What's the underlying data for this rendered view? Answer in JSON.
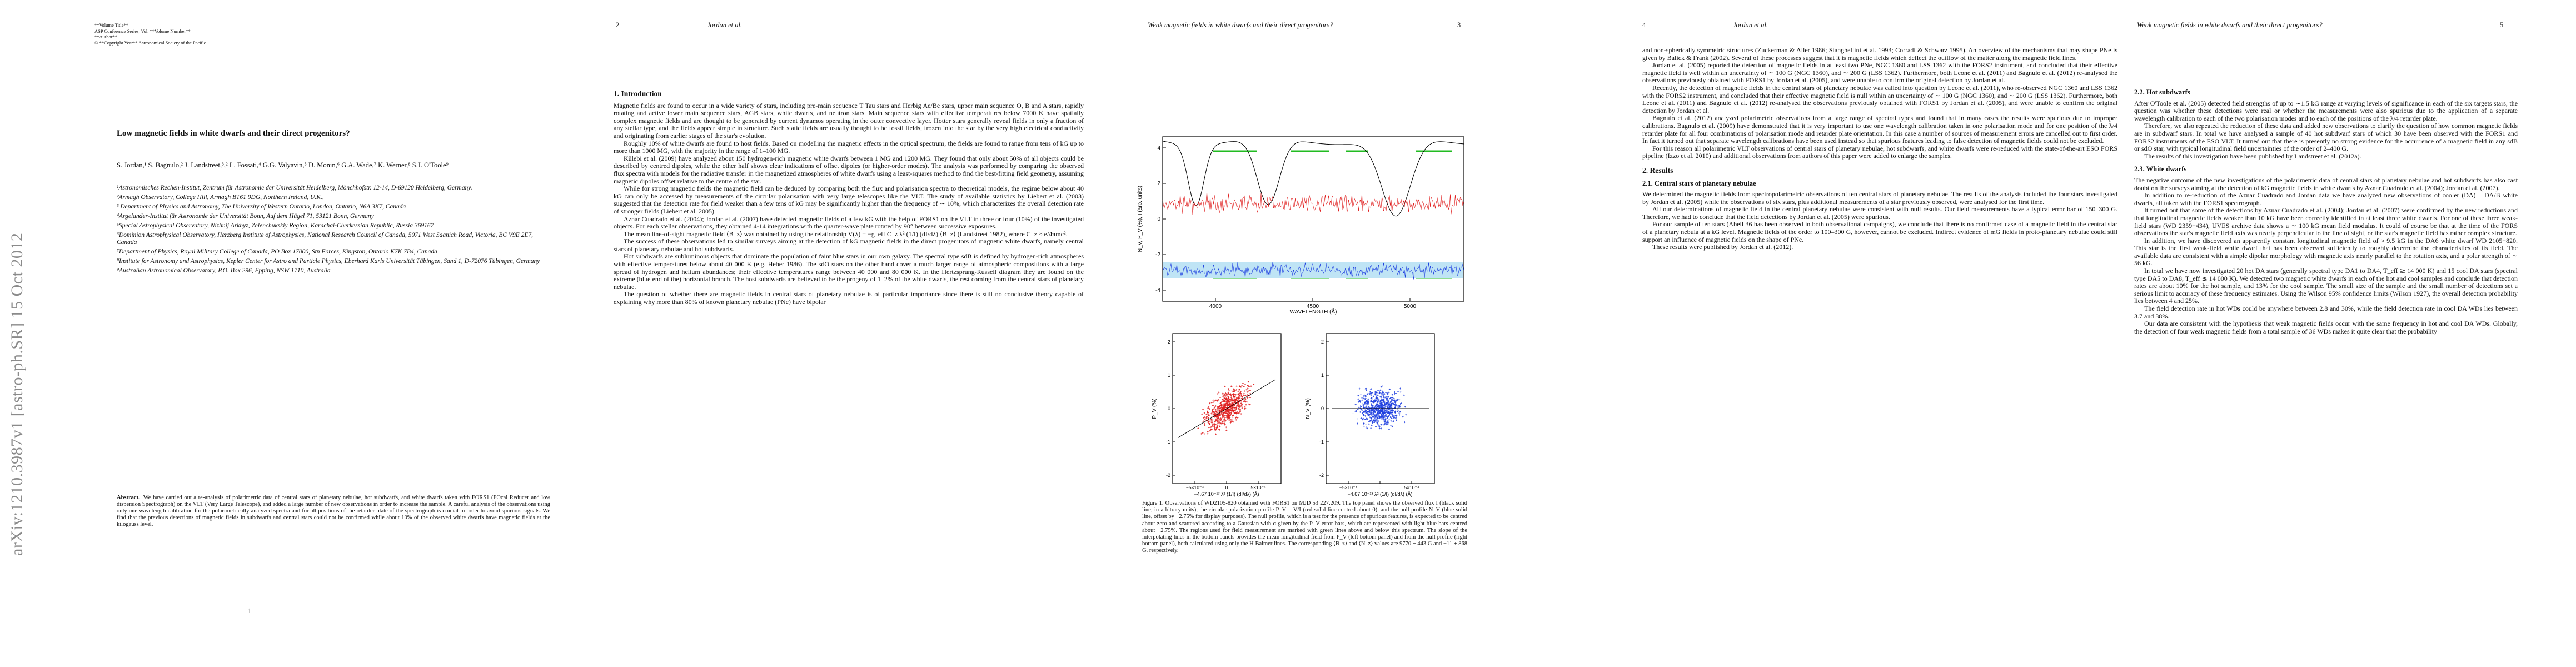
{
  "arxiv_stamp": "arXiv:1210.3987v1  [astro-ph.SR]  15 Oct 2012",
  "page1": {
    "volume_lines": [
      "**Volume Title**",
      "ASP Conference Series, Vol. **Volume Number**",
      "**Author**",
      "© **Copyright Year** Astronomical Society of the Pacific"
    ],
    "title": "Low magnetic fields in white dwarfs and their direct progenitors?",
    "authors": "S. Jordan,¹ S. Bagnulo,² J. Landstreet,³,² L. Fossati,⁴ G.G. Valyavin,⁵ D. Monin,⁶ G.A. Wade,⁷ K. Werner,⁸ S.J. O'Toole⁹",
    "affiliations": [
      "¹Astronomisches Rechen-Institut, Zentrum für Astronomie der Universität Heidelberg, Mönchhofstr. 12-14, D-69120 Heidelberg, Germany.",
      "²Armagh Observatory, College Hill, Armagh BT61 9DG, Northern Ireland, U.K.,",
      "³ Department of Physics and Astronomy, The University of Western Ontario, London, Ontario, N6A 3K7, Canada",
      "⁴Argelander-Institut für Astronomie der Universität Bonn, Auf dem Hügel 71, 53121 Bonn, Germany",
      "⁵Special Astrophysical Observatory, Nizhnij Arkhyz, Zelenchukskiy Region, Karachai-Cherkessian Republic, Russia 369167",
      "⁶Dominion Astrophysical Observatory, Herzberg Institute of Astrophysics, National Research Council of Canada, 5071 West Saanich Road, Victoria, BC V9E 2E7, Canada",
      "⁷Department of Physics, Royal Military College of Canada, PO Box 17000, Stn Forces, Kingston, Ontario K7K 7B4, Canada",
      "⁸Institute for Astronomy and Astrophysics, Kepler Center for Astro and Particle Physics, Eberhard Karls Universität Tübingen, Sand 1, D-72076 Tübingen, Germany",
      "⁹Australian Astronomical Observatory, P.O. Box 296, Epping, NSW 1710, Australia"
    ],
    "abstract_label": "Abstract.",
    "abstract": "We have carried out a re-analysis of polarimetric data of central stars of planetary nebulae, hot subdwarfs, and white dwarfs taken with FORS1 (FOcal Reducer and low dispersion Spectrograph) on the VLT (Very Large Telescope), and added a large number of new observations in order to increase the sample. A careful analysis of the observations using only one wavelength calibration for the polarimetrically analyzed spectra and for all positions of the retarder plate of the spectrograph is crucial in order to avoid spurious signals. We find that the previous detections of magnetic fields in subdwarfs and central stars could not be confirmed while about 10% of the observed white dwarfs have magnetic fields at the kilogauss level.",
    "page_number": "1"
  },
  "page2": {
    "page_number": "2",
    "running_head": "Jordan et al.",
    "blocks": [
      {
        "heading": "1.   Introduction"
      },
      {
        "text": "Magnetic fields are found to occur in a wide variety of stars, including pre-main sequence T Tau stars and Herbig Ae/Be stars, upper main sequence O, B and A stars, rapidly rotating and active lower main sequence stars, AGB stars, white dwarfs, and neutron stars. Main sequence stars with effective temperatures below 7000 K have spatially complex magnetic fields and are thought to be generated by current dynamos operating in the outer convective layer. Hotter stars generally reveal fields in only a fraction of any stellar type, and the fields appear simple in structure. Such static fields are usually thought to be fossil fields, frozen into the star by the very high electrical conductivity and originating from earlier stages of the star's evolution."
      },
      {
        "text": "Roughly 10% of white dwarfs are found to host fields. Based on modelling the magnetic effects in the optical spectrum, the fields are found to range from tens of kG up to more than 1000 MG, with the majority in the range of 1–100 MG."
      },
      {
        "text": "Külebi et al. (2009) have analyzed about 150 hydrogen-rich magnetic white dwarfs between 1 MG and 1200 MG. They found that only about 50% of all objects could be described by centred dipoles, while the other half shows clear indications of offset dipoles (or higher-order modes). The analysis was performed by comparing the observed flux spectra with models for the radiative transfer in the magnetized atmospheres of white dwarfs using a least-squares method to find the best-fitting field geometry, assuming magnetic dipoles offset relative to the centre of the star."
      },
      {
        "text": "While for strong magnetic fields the magnetic field can be deduced by comparing both the flux and polarisation spectra to theoretical models, the regime below about 40 kG can only be accessed by measurements of the circular polarisation with very large telescopes like the VLT. The study of available statistics by Liebert et al. (2003) suggested that the detection rate for field weaker than a few tens of kG may be significantly higher than the frequency of ∼ 10%, which characterizes the overall detection rate of stronger fields (Liebert et al. 2005)."
      },
      {
        "text": "Aznar Cuadrado et al. (2004); Jordan et al. (2007) have detected magnetic fields of a few kG with the help of FORS1 on the VLT in three or four (10%) of the investigated objects. For each stellar observations, they obtained 4-14 integrations with the quarter-wave plate rotated by 90° between successive exposures."
      },
      {
        "text": "The mean line-of-sight magnetic field ⟨B_z⟩ was obtained by using the relationship V(λ) = −g_eff C_z λ² (1/I) (dI/dλ) ⟨B_z⟩ (Landstreet 1982), where C_z ≈ e/4πmc²."
      },
      {
        "text": "The success of these observations led to similar surveys aiming at the detection of kG magnetic fields in the direct progenitors of magnetic white dwarfs, namely central stars of planetary nebulae and hot subdwarfs."
      },
      {
        "text": "Hot subdwarfs are subluminous objects that dominate the population of faint blue stars in our own galaxy. The spectral type sdB is defined by hydrogen-rich atmospheres with effective temperatures below about 40 000 K (e.g. Heber 1986). The sdO stars on the other hand cover a much larger range of atmospheric compositions with a large spread of hydrogen and helium abundances; their effective temperatures range between 40 000 and 80 000 K. In the Hertzsprung-Russell diagram they are found on the extreme (blue end of the) horizontal branch. The host subdwarfs are believed to be the progeny of 1–2% of the white dwarfs, the rest coming from the central stars of planetary nebulae."
      },
      {
        "text": "The question of whether there are magnetic fields in central stars of planetary nebulae is of particular importance since there is still no conclusive theory capable of explaining why more than 80% of known planetary nebulae (PNe) have bipolar"
      }
    ]
  },
  "page3": {
    "running_head": "Weak magnetic fields in white dwarfs and their direct progenitors?",
    "page_number": "3",
    "figure": {
      "top_ylabel": "N_V, P_V (%), I (arb. units)",
      "top_yticks": [
        "4",
        "2",
        "0",
        "-2",
        "-4"
      ],
      "top_xticks": [
        "4000",
        "4500",
        "5000"
      ],
      "top_xlabel": "WAVELENGTH (Å)",
      "left_ylabel": "P_V (%)",
      "right_ylabel": "N_V (%)",
      "bottom_yticks": [
        "2",
        "1",
        "0",
        "-1",
        "-2"
      ],
      "bottom_xticks": [
        "−5×10⁻⁴",
        "0",
        "5×10⁻⁴"
      ],
      "bottom_xlabel": "−4.67 10⁻¹³ λ² (1/I) (dI/dλ) (Å)",
      "caption": "Figure 1.   Observations of WD2105-820 obtained with FORS1 on MJD 53 227.209. The top panel shows the observed flux I (black solid line, in arbitrary units), the circular polarization profile P_V = V/I (red solid line centred about 0), and the null profile N_V (blue solid line, offset by −2.75% for display purposes). The null profile, which is a test for the presence of spurious features, is expected to be centred about zero and scattered according to a Gaussian with σ given by the P_V error bars, which are represented with light blue bars centred about −2.75%. The regions used for field measurement are marked with green lines above and below this spectrum. The slope of the interpolating lines in the bottom panels provides the mean longitudinal field from P_V (left bottom panel) and from the null profile (right bottom panel), both calculated using only the H Balmer lines. The corresponding ⟨B_z⟩ and ⟨N_z⟩ values are 9770 ± 443 G and −11 ± 868 G, respectively."
    }
  },
  "page4": {
    "page_number": "4",
    "running_head": "Jordan et al.",
    "blocks": [
      {
        "text": "and non-spherically symmetric structures (Zuckerman & Aller 1986; Stanghellini et al. 1993; Corradi & Schwarz 1995). An overview of the mechanisms that may shape PNe is given by Balick & Frank (2002). Several of these processes suggest that it is magnetic fields which deflect the outflow of the matter along the magnetic field lines."
      },
      {
        "text": "Jordan et al. (2005) reported the detection of magnetic fields in at least two PNe, NGC 1360 and LSS 1362 with the FORS2 instrument, and concluded that their effective magnetic field is well within an uncertainty of ∼ 100 G (NGC 1360), and ∼ 200 G (LSS 1362). Furthermore, both Leone et al. (2011) and Bagnulo et al. (2012) re-analysed the observations previously obtained with FORS1 by Jordan et al. (2005), and were unable to confirm the original detection by Jordan et al."
      },
      {
        "text": "Recently, the detection of magnetic fields in the central stars of planetary nebulae was called into question by Leone et al. (2011), who re-observed NGC 1360 and LSS 1362 with the FORS2 instrument, and concluded that their effective magnetic field is null within an uncertainty of ∼ 100 G (NGC 1360), and ∼ 200 G (LSS 1362). Furthermore, both Leone et al. (2011) and Bagnulo et al. (2012) re-analysed the observations previously obtained with FORS1 by Jordan et al. (2005), and were unable to confirm the original detection by Jordan et al."
      },
      {
        "text": "Bagnulo et al. (2012) analyzed polarimetric observations from a large range of spectral types and found that in many cases the results were spurious due to improper calibrations. Bagnulo et al. (2009) have demonstrated that it is very important to use one wavelength calibration taken in one polarisation mode and for one position of the λ/4 retarder plate for all four combinations of polarisation mode and retarder plate orientation. In this case a number of sources of measurement errors are cancelled out to first order. In fact it turned out that separate wavelength calibrations have been used instead so that spurious features leading to false detection of magnetic fields could not be excluded."
      },
      {
        "text": "For this reason all polarimetric VLT observations of central stars of planetary nebulae, hot subdwarfs, and white dwarfs were re-reduced with the state-of-the-art ESO FORS pipeline (Izzo et al. 2010) and additional observations from authors of this paper were added to enlarge the samples."
      },
      {
        "heading": "2.   Results"
      },
      {
        "subheading": "2.1.   Central stars of planetary nebulae"
      },
      {
        "text": "We determined the magnetic fields from spectropolarimetric observations of ten central stars of planetary nebulae. The results of the analysis included the four stars investigated by Jordan et al. (2005) while the observations of six stars, plus additional measurements of a star previously observed, were analysed for the first time."
      },
      {
        "text": "All our determinations of magnetic field in the central planetary nebulae were consistent with null results. Our field measurements have a typical error bar of 150–300 G. Therefore, we had to conclude that the field detections by Jordan et al. (2005) were spurious."
      },
      {
        "text": "For our sample of ten stars (Abell 36 has been observed in both observational campaigns), we conclude that there is no confirmed case of a magnetic field in the central star of a planetary nebula at a kG level. Magnetic fields of the order to 100–300 G, however, cannot be excluded. Indirect evidence of mG fields in proto-planetary nebulae could still support an influence of magnetic fields on the shape of PNe."
      },
      {
        "text": "These results were published by Jordan et al. (2012)."
      }
    ]
  },
  "page5": {
    "running_head": "Weak magnetic fields in white dwarfs and their direct progenitors?",
    "page_number": "5",
    "blocks": [
      {
        "subheading": "2.2.   Hot subdwarfs"
      },
      {
        "text": "After O'Toole et al. (2005) detected field strengths of up to ∼1.5 kG range at varying levels of significance in each of the six targets stars, the question was whether these detections were real or whether the measurements were also spurious due to the application of a separate wavelength calibration to each of the two polarisation modes and to each of the positions of the λ/4 retarder plate."
      },
      {
        "text": "Therefore, we also repeated the reduction of these data and added new observations to clarify the question of how common magnetic fields are in subdwarf stars. In total we have analysed a sample of 40 hot subdwarf stars of which 30 have been observed with the FORS1 and FORS2 instruments of the ESO VLT. It turned out that there is presently no strong evidence for the occurrence of a magnetic field in any sdB or sdO star, with typical longitudinal field uncertainties of the order of 2–400 G."
      },
      {
        "text": "The results of this investigation have been published by Landstreet et al. (2012a)."
      },
      {
        "subheading": "2.3.   White dwarfs"
      },
      {
        "text": "The negative outcome of the new investigations of the polarimetric data of central stars of planetary nebulae and hot subdwarfs has also cast doubt on the surveys aiming at the detection of kG magnetic fields in white dwarfs by Aznar Cuadrado et al. (2004); Jordan et al. (2007)."
      },
      {
        "text": "In addition to re-reduction of the Aznar Cuadrado and Jordan data we have analyzed new observations of cooler (DA) – DA/B white dwarfs, all taken with the FORS1 spectrograph."
      },
      {
        "text": "It turned out that some of the detections by Aznar Cuadrado et al. (2004); Jordan et al. (2007) were confirmed by the new reductions and that longitudinal magnetic fields weaker than 10 kG have been correctly identified in at least three white dwarfs. For one of these three weak-field stars (WD 2359−434), UVES archive data shows a ∼ 100 kG mean field modulus. It could of course be that at the time of the FORS observations the star's magnetic field axis was nearly perpendicular to the line of sight, or the star's magnetic field has rather complex structure."
      },
      {
        "text": "In addition, we have discovered an apparently constant longitudinal magnetic field of ≈ 9.5 kG in the DA6 white dwarf WD 2105−820. This star is the first weak-field white dwarf that has been observed sufficiently to roughly determine the characteristics of its field. The available data are consistent with a simple dipolar morphology with magnetic axis nearly parallel to the rotation axis, and a polar strength of ∼ 56 kG."
      },
      {
        "text": "In total we have now investigated 20 hot DA stars (generally spectral type DA1 to DA4, T_eff ≳ 14 000 K) and 15 cool DA stars (spectral type DA5 to DA8, T_eff ≲ 14 000 K). We detected two magnetic white dwarfs in each of the hot and cool samples and conclude that detection rates are about 10% for the hot sample, and 13% for the cool sample. The small size of the sample and the small number of detections set a serious limit to accuracy of these frequency estimates. Using the Wilson 95% confidence limits (Wilson 1927), the overall detection probability lies between 4 and 25%."
      },
      {
        "text": "The field detection rate in hot WDs could be anywhere between 2.8 and 30%, while the field detection rate in cool DA WDs lies between 3.7 and 38%."
      },
      {
        "text": "Our data are consistent with the hypothesis that weak magnetic fields occur with the same frequency in hot and cool DA WDs. Globally, the detection of four weak magnetic fields from a total sample of 36 WDs makes it quite clear that the probability"
      }
    ]
  }
}
